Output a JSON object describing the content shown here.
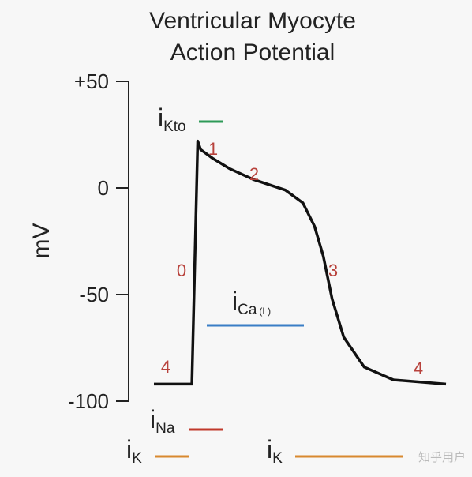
{
  "chart_data": {
    "type": "line",
    "title": [
      "Ventricular Myocyte",
      "Action Potential"
    ],
    "y_label": "mV",
    "x": [
      0,
      13,
      15,
      16,
      20,
      26,
      34,
      45,
      51,
      55,
      58,
      61,
      65,
      72,
      82,
      100
    ],
    "values": [
      -92,
      -92,
      22,
      18,
      14,
      9,
      4,
      -1,
      -7,
      -18,
      -32,
      -52,
      -70,
      -84,
      -90,
      -92
    ],
    "color": "#111111",
    "xlim": [
      0,
      100
    ],
    "ylim": [
      -100,
      50
    ],
    "yticks": [
      {
        "value": 50,
        "label": "+50"
      },
      0,
      -50,
      -100
    ],
    "phases": [
      "4",
      "0",
      "1",
      "2",
      "3",
      "4"
    ],
    "phase_color": "#b8423c",
    "currents": [
      {
        "symbol": "i",
        "subscript": "Kto",
        "color": "#2e9a57"
      },
      {
        "symbol": "i",
        "subscript": "Ca",
        "suffix": "(L)",
        "color": "#3a7ec6"
      },
      {
        "symbol": "i",
        "subscript": "Na",
        "color": "#c0392b"
      },
      {
        "symbol": "i",
        "subscript": "K",
        "color": "#d8892f"
      },
      {
        "symbol": "i",
        "subscript": "K",
        "color": "#d8892f"
      }
    ],
    "watermark": "知乎用户"
  }
}
